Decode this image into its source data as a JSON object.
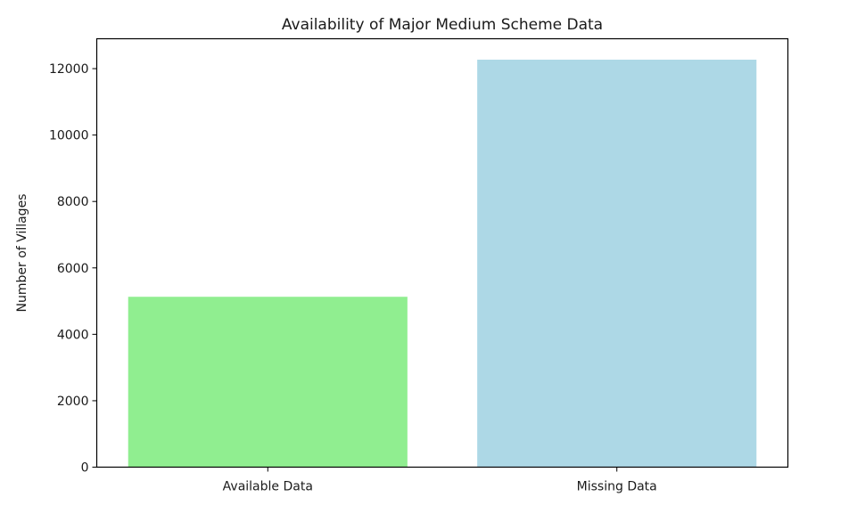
{
  "chart_data": {
    "type": "bar",
    "title": "Availability of Major Medium Scheme Data",
    "xlabel": "",
    "ylabel": "Number of Villages",
    "categories": [
      "Available Data",
      "Missing Data"
    ],
    "values": [
      5130,
      12270
    ],
    "colors": [
      "#90ee90",
      "#add8e6"
    ],
    "ylim": [
      0,
      12900
    ],
    "yticks": [
      0,
      2000,
      4000,
      6000,
      8000,
      10000,
      12000
    ],
    "grid": false,
    "legend": "none"
  }
}
